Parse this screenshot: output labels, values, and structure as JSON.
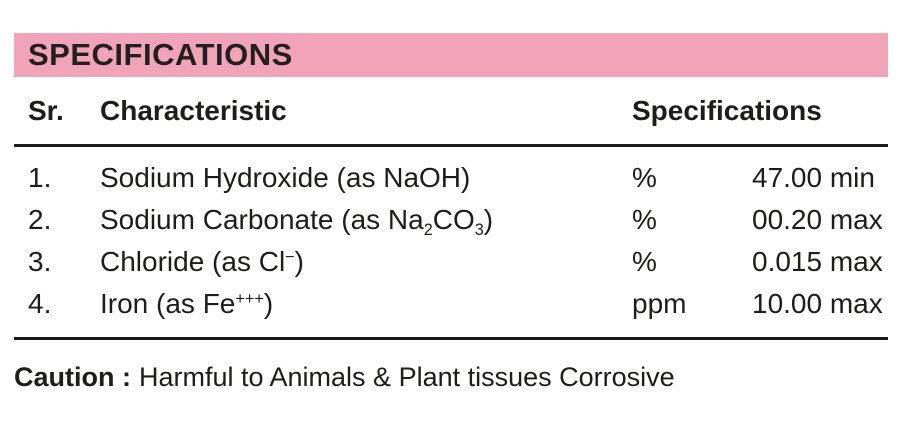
{
  "title_bar": {
    "label": "SPECIFICATIONS"
  },
  "colors": {
    "banner_pink": "#F0A3B9",
    "text": "#1D1D1B",
    "rule": "#1A1A1A"
  },
  "table": {
    "headers": {
      "sr": "Sr.",
      "characteristic": "Characteristic",
      "specifications": "Specifications"
    },
    "rows": [
      {
        "num": "1.",
        "name": [
          {
            "text": "Sodium Hydroxide (as NaOH)"
          }
        ],
        "unit": "%",
        "value": "47.00 min"
      },
      {
        "num": "2.",
        "name": [
          {
            "text": "Sodium Carbonate (as Na"
          },
          {
            "sub": "2"
          },
          {
            "text": "CO"
          },
          {
            "sub": "3"
          },
          {
            "text": ")"
          }
        ],
        "unit": "%",
        "value": "00.20 max"
      },
      {
        "num": "3.",
        "name": [
          {
            "text": "Chloride (as Cl"
          },
          {
            "sup": "−"
          },
          {
            "text": ")"
          }
        ],
        "unit": "%",
        "value": "0.015 max"
      },
      {
        "num": "4.",
        "name": [
          {
            "text": "Iron (as Fe"
          },
          {
            "sup": "+++"
          },
          {
            "text": ")"
          }
        ],
        "unit": "ppm",
        "value": "10.00 max"
      }
    ]
  },
  "caution": {
    "label": "Caution :",
    "text": "Harmful to Animals & Plant tissues Corrosive"
  }
}
